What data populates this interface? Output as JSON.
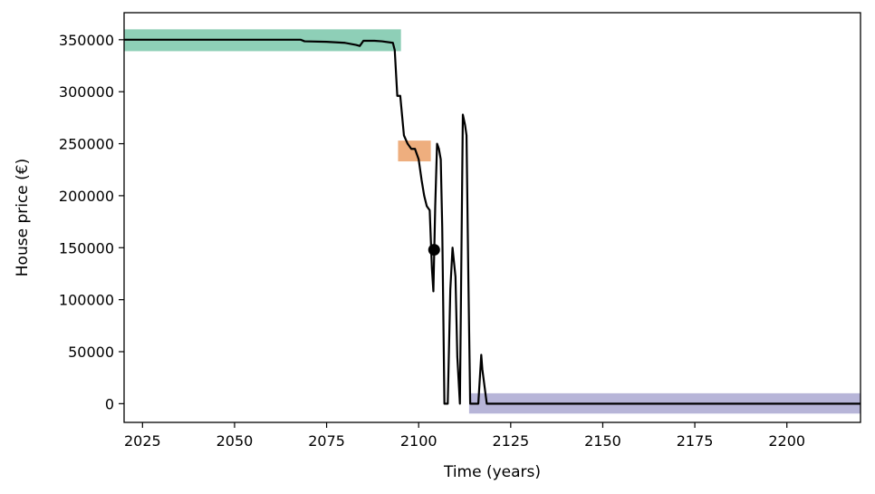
{
  "chart_data": {
    "type": "line",
    "title": "",
    "xlabel": "Time (years)",
    "ylabel": "House price (€)",
    "xlim": [
      2020,
      2220
    ],
    "ylim": [
      -18000,
      376000
    ],
    "x_ticks": [
      2025,
      2050,
      2075,
      2100,
      2125,
      2150,
      2175,
      2200
    ],
    "y_ticks": [
      0,
      50000,
      100000,
      150000,
      200000,
      250000,
      300000,
      350000
    ],
    "grid": false,
    "legend": "none",
    "line_color": "#000000",
    "series": [
      {
        "x": [
          2020,
          2025,
          2030,
          2040,
          2050,
          2060,
          2068,
          2069,
          2075,
          2080,
          2083,
          2084,
          2085,
          2088,
          2090,
          2093,
          2093.5,
          2094.2,
          2095,
          2096,
          2097,
          2098,
          2099,
          2100,
          2100.8,
          2101.5,
          2102.2,
          2103,
          2103.6,
          2104,
          2104.5,
          2105,
          2105.5,
          2106,
          2106.4,
          2107,
          2107.4,
          2107.9,
          2108.6,
          2109.2,
          2110,
          2110.5,
          2111.2,
          2112,
          2112.6,
          2113,
          2113.5,
          2114,
          2114.6,
          2115.6,
          2116.2,
          2117,
          2117.3,
          2118.5,
          2125,
          2150,
          2175,
          2200,
          2220
        ],
        "y": [
          350000,
          350000,
          350000,
          350000,
          350000,
          350000,
          350000,
          348500,
          348000,
          347000,
          345000,
          344000,
          349000,
          349000,
          348500,
          347000,
          340000,
          296000,
          296000,
          258000,
          250000,
          245000,
          245000,
          235000,
          215000,
          200000,
          190000,
          186000,
          130000,
          108000,
          190000,
          250000,
          245000,
          235000,
          170000,
          0,
          0,
          0,
          110000,
          150000,
          122000,
          45000,
          0,
          278000,
          268000,
          258000,
          120000,
          0,
          0,
          0,
          0,
          47000,
          33000,
          0,
          0,
          0,
          0,
          0,
          0
        ]
      }
    ],
    "highlight_boxes": [
      {
        "color": "#8ecfb7",
        "x_range": [
          2020,
          2095.2
        ],
        "y_range": [
          339000,
          360000
        ]
      },
      {
        "color": "#eeae7e",
        "x_range": [
          2094.4,
          2103.3
        ],
        "y_range": [
          233000,
          253000
        ]
      },
      {
        "color": "#b7b5d8",
        "x_range": [
          2113.7,
          2220
        ],
        "y_range": [
          -9500,
          10000
        ]
      }
    ],
    "marker_point": {
      "x": 2104.2,
      "y": 148000,
      "color": "#000000"
    }
  }
}
